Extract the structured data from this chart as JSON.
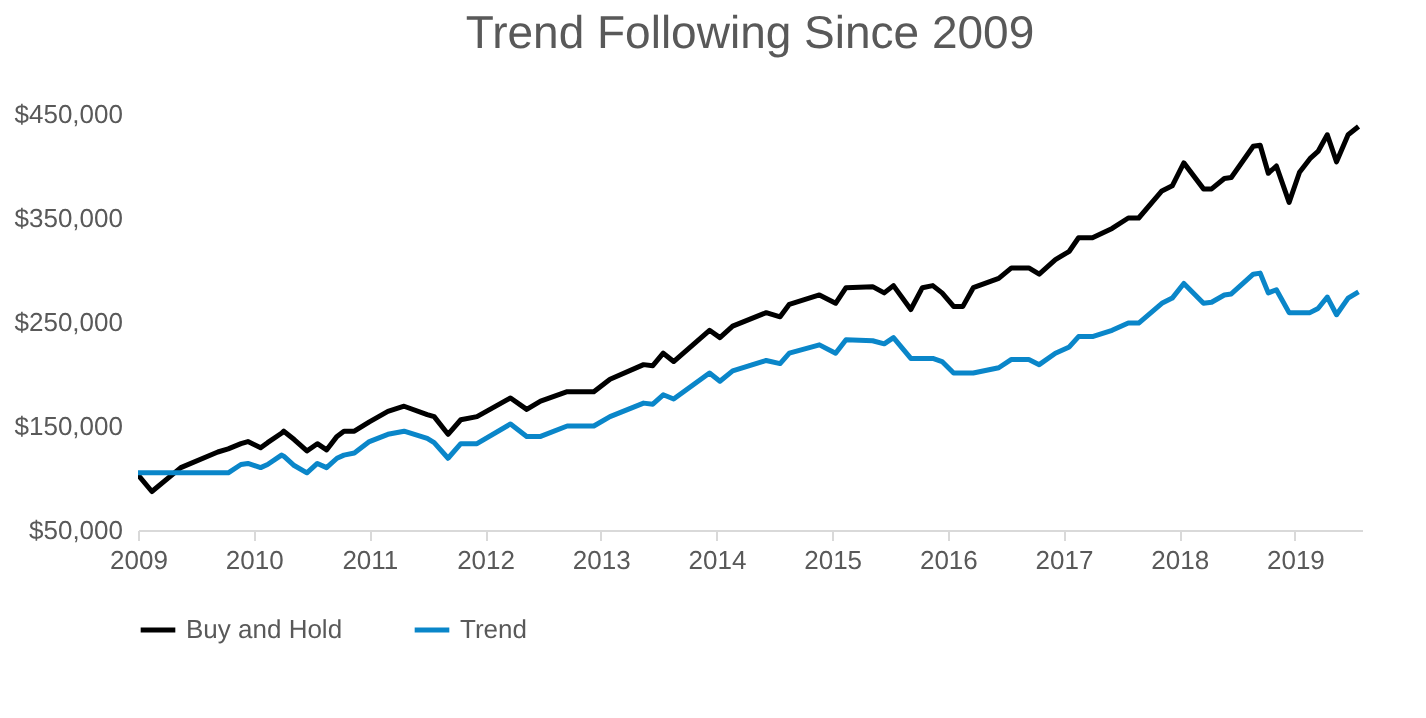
{
  "chart_data": {
    "type": "line",
    "title": "Trend Following Since 2009",
    "x": [
      2009.0,
      2009.12,
      2009.37,
      2009.69,
      2009.78,
      2009.89,
      2009.95,
      2010.06,
      2010.12,
      2010.24,
      2010.26,
      2010.35,
      2010.46,
      2010.55,
      2010.63,
      2010.72,
      2010.78,
      2010.87,
      2011.0,
      2011.16,
      2011.3,
      2011.5,
      2011.56,
      2011.68,
      2011.79,
      2011.93,
      2012.22,
      2012.36,
      2012.48,
      2012.71,
      2012.94,
      2013.08,
      2013.37,
      2013.45,
      2013.54,
      2013.63,
      2013.94,
      2014.03,
      2014.14,
      2014.43,
      2014.55,
      2014.63,
      2014.89,
      2015.03,
      2015.12,
      2015.35,
      2015.45,
      2015.53,
      2015.68,
      2015.78,
      2015.87,
      2015.95,
      2016.05,
      2016.13,
      2016.22,
      2016.44,
      2016.55,
      2016.7,
      2016.79,
      2016.93,
      2017.05,
      2017.13,
      2017.25,
      2017.42,
      2017.56,
      2017.65,
      2017.85,
      2017.94,
      2018.04,
      2018.21,
      2018.28,
      2018.39,
      2018.45,
      2018.64,
      2018.7,
      2018.77,
      2018.84,
      2018.95,
      2019.04,
      2019.13,
      2019.2,
      2019.28,
      2019.36,
      2019.46,
      2019.55
    ],
    "series": [
      {
        "name": "Buy and Hold",
        "color": "#000000",
        "values": [
          103000,
          87000,
          110000,
          125000,
          128000,
          133000,
          135000,
          129000,
          134000,
          143000,
          145000,
          137000,
          126000,
          133000,
          127000,
          140000,
          145000,
          145000,
          154000,
          164000,
          169000,
          161000,
          159000,
          142000,
          156000,
          159000,
          177000,
          166000,
          174000,
          183000,
          183000,
          195000,
          209000,
          208000,
          220000,
          212000,
          242000,
          235000,
          246000,
          259000,
          255000,
          267000,
          276000,
          268000,
          283000,
          284000,
          278000,
          285000,
          262000,
          283000,
          285000,
          278000,
          265000,
          265000,
          283000,
          292000,
          302000,
          302000,
          296000,
          310000,
          318000,
          331000,
          331000,
          340000,
          350000,
          350000,
          376000,
          381000,
          403000,
          378000,
          378000,
          388000,
          389000,
          419000,
          420000,
          393000,
          400000,
          365000,
          394000,
          407000,
          414000,
          430000,
          404000,
          430000,
          438000
        ]
      },
      {
        "name": "Trend",
        "color": "#0a86c9",
        "values": [
          105000,
          105000,
          105000,
          105000,
          105000,
          113000,
          114000,
          110000,
          113000,
          122000,
          121000,
          112000,
          105000,
          114000,
          110000,
          119000,
          122000,
          124000,
          135000,
          142000,
          145000,
          138000,
          134000,
          119000,
          133000,
          133000,
          152000,
          140000,
          140000,
          150000,
          150000,
          159000,
          172000,
          171000,
          180000,
          176000,
          201000,
          193000,
          203000,
          213000,
          210000,
          220000,
          228000,
          220000,
          233000,
          232000,
          229000,
          235000,
          215000,
          215000,
          215000,
          212000,
          201000,
          201000,
          201000,
          206000,
          214000,
          214000,
          209000,
          220000,
          226000,
          236000,
          236000,
          242000,
          249000,
          249000,
          268000,
          273000,
          287000,
          268000,
          269000,
          276000,
          277000,
          296000,
          297000,
          278000,
          281000,
          259000,
          259000,
          259000,
          263000,
          274000,
          257000,
          273000,
          279000
        ]
      }
    ],
    "xlim": [
      2009,
      2019.58
    ],
    "xticks": [
      2009,
      2010,
      2011,
      2012,
      2013,
      2014,
      2015,
      2016,
      2017,
      2018,
      2019
    ],
    "ylim": [
      50000,
      450000
    ],
    "yticks": [
      {
        "value": 50000,
        "label": "$50,000"
      },
      {
        "value": 150000,
        "label": "$150,000"
      },
      {
        "value": 250000,
        "label": "$250,000"
      },
      {
        "value": 350000,
        "label": "$350,000"
      },
      {
        "value": 450000,
        "label": "$450,000"
      }
    ],
    "grid": false,
    "legend": "bottom"
  }
}
